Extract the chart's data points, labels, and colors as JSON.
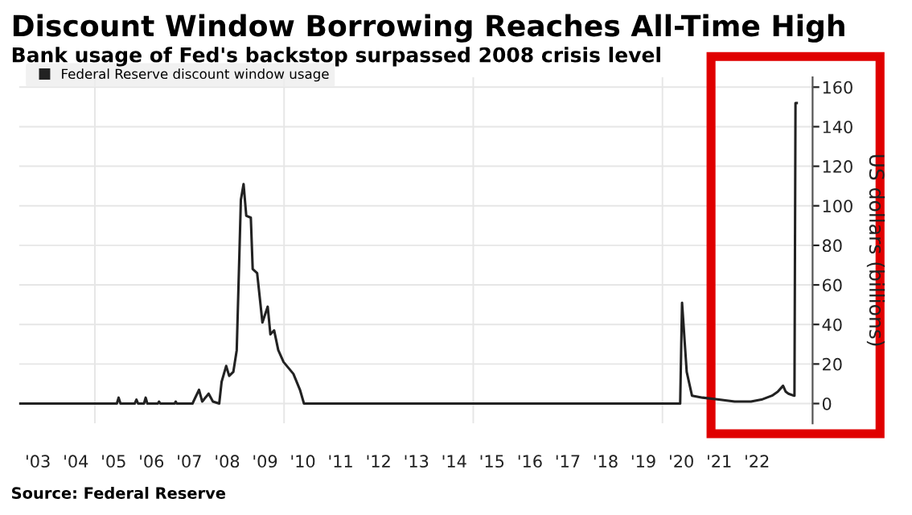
{
  "chart_data": {
    "type": "line",
    "title": "Discount Window Borrowing Reaches All-Time High",
    "subtitle": "Bank usage of Fed's backstop surpassed 2008 crisis level",
    "ylabel": "US dollars (billions)",
    "annotations": [
      "Source: Federal Reserve"
    ],
    "legend": "top left",
    "grid": true,
    "xlim": [
      "2003-01-01",
      "2023-12-20"
    ],
    "xticks": [
      {
        "value": "2003-07-01",
        "label": "'03"
      },
      {
        "value": "2004-07-01",
        "label": "'04"
      },
      {
        "value": "2005-01-01",
        "label": null
      },
      {
        "value": "2005-07-01",
        "label": "'05"
      },
      {
        "value": "2006-07-01",
        "label": "'06"
      },
      {
        "value": "2007-07-01",
        "label": "'07"
      },
      {
        "value": "2008-07-01",
        "label": "'08"
      },
      {
        "value": "2009-07-01",
        "label": "'09"
      },
      {
        "value": "2010-01-01",
        "label": null
      },
      {
        "value": "2010-07-01",
        "label": "'10"
      },
      {
        "value": "2011-07-01",
        "label": "'11"
      },
      {
        "value": "2012-07-01",
        "label": "'12"
      },
      {
        "value": "2013-07-01",
        "label": "'13"
      },
      {
        "value": "2014-07-01",
        "label": "'14"
      },
      {
        "value": "2015-01-01",
        "label": null
      },
      {
        "value": "2015-07-01",
        "label": "'15"
      },
      {
        "value": "2016-07-01",
        "label": "'16"
      },
      {
        "value": "2017-07-01",
        "label": "'17"
      },
      {
        "value": "2018-07-01",
        "label": "'18"
      },
      {
        "value": "2019-07-01",
        "label": "'19"
      },
      {
        "value": "2020-01-01",
        "label": null
      },
      {
        "value": "2020-07-01",
        "label": "'20"
      },
      {
        "value": "2021-07-01",
        "label": "'21"
      },
      {
        "value": "2022-07-01",
        "label": "'22"
      }
    ],
    "ylim": [
      -10,
      165
    ],
    "yticks": [
      0,
      20,
      40,
      60,
      80,
      100,
      120,
      140,
      160
    ],
    "series": [
      {
        "name": "Federal Reserve discount window usage",
        "color": "#222222",
        "x": [
          "2003-01-01",
          "2005-08-01",
          "2005-08-18",
          "2005-09-05",
          "2006-01-20",
          "2006-02-06",
          "2006-02-22",
          "2006-04-20",
          "2006-05-06",
          "2006-05-22",
          "2006-09-01",
          "2006-09-12",
          "2006-09-24",
          "2007-02-10",
          "2007-02-20",
          "2007-03-02",
          "2007-08-01",
          "2007-10-03",
          "2007-11-03",
          "2008-01-04",
          "2008-02-14",
          "2008-04-15",
          "2008-05-08",
          "2008-06-21",
          "2008-07-20",
          "2008-08-29",
          "2008-10-01",
          "2008-11-10",
          "2008-12-06",
          "2009-01-01",
          "2009-02-14",
          "2009-03-04",
          "2009-04-16",
          "2009-06-06",
          "2009-07-27",
          "2009-08-22",
          "2009-09-27",
          "2009-11-06",
          "2009-12-27",
          "2010-04-01",
          "2010-06-03",
          "2010-07-12",
          "2020-06-20",
          "2020-07-08",
          "2020-08-22",
          "2020-10-12",
          "2021-01-22",
          "2021-06-28",
          "2021-11-28",
          "2022-05-04",
          "2022-08-14",
          "2022-11-24",
          "2023-01-18",
          "2023-03-10",
          "2023-04-05",
          "2023-05-01",
          "2023-06-20",
          "2023-06-28",
          "2023-07-08",
          "2023-07-20"
        ],
        "values": [
          0,
          0,
          3,
          0,
          0,
          2,
          0,
          0,
          3,
          0,
          0,
          1,
          0,
          0,
          1,
          0,
          0,
          7,
          1,
          5,
          1,
          0,
          11,
          19,
          14,
          16,
          27,
          103,
          111,
          95,
          94,
          68,
          66,
          41,
          49,
          35,
          37,
          27,
          21,
          15,
          7,
          0,
          0,
          51,
          16,
          4,
          3,
          2,
          1,
          1,
          2,
          4,
          6,
          9,
          6,
          5,
          4,
          4,
          152,
          152
        ]
      }
    ]
  }
}
